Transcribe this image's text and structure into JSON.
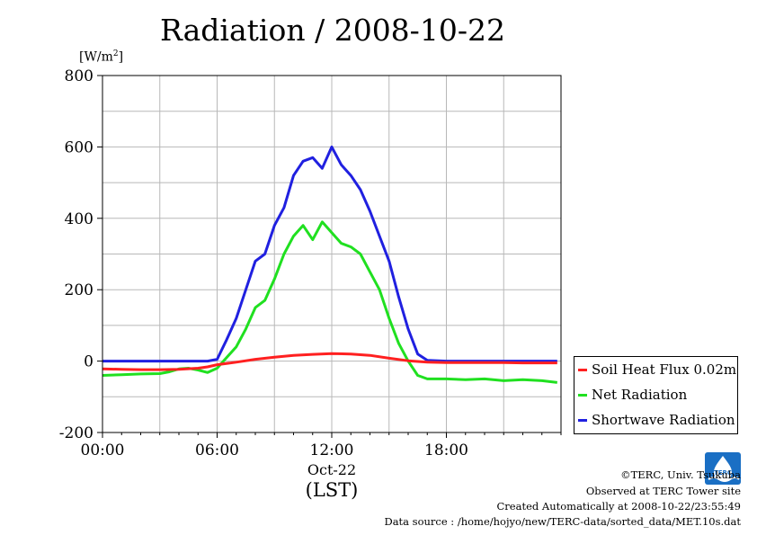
{
  "chart_data": {
    "type": "line",
    "title": "Radiation / 2008-10-22",
    "ylabel": "[W/m2]",
    "ylabel_base": "[W/m",
    "ylabel_sup": "2",
    "ylabel_end": "]",
    "xlabel_date": "Oct-22",
    "xlabel": "(LST)",
    "xlim": [
      0,
      24
    ],
    "ylim": [
      -200,
      800
    ],
    "y_ticks": [
      -200,
      0,
      200,
      400,
      600,
      800
    ],
    "y_tick_labels": [
      "-200",
      "0",
      "200",
      "400",
      "600",
      "800"
    ],
    "x_ticks": [
      0,
      6,
      12,
      18
    ],
    "x_tick_labels": [
      "00:00",
      "06:00",
      "12:00",
      "18:00"
    ],
    "grid": true,
    "legend_position": "right",
    "series": [
      {
        "name": "Soil Heat Flux 0.02m",
        "color": "#ff2020",
        "x": [
          0,
          1,
          2,
          3,
          4,
          5,
          5.5,
          6,
          7,
          8,
          9,
          10,
          11,
          12,
          13,
          14,
          15,
          16,
          17,
          18,
          19,
          20,
          21,
          22,
          23,
          23.8
        ],
        "y": [
          -22,
          -23,
          -24,
          -24,
          -23,
          -20,
          -16,
          -10,
          -3,
          5,
          11,
          16,
          19,
          21,
          20,
          16,
          8,
          1,
          -3,
          -4,
          -4,
          -4,
          -4,
          -5,
          -5,
          -5
        ]
      },
      {
        "name": "Net Radiation",
        "color": "#20e020",
        "x": [
          0,
          1,
          2,
          3,
          3.5,
          4,
          4.5,
          5,
          5.5,
          6,
          6.5,
          7,
          7.5,
          8,
          8.5,
          9,
          9.5,
          10,
          10.5,
          11,
          11.5,
          12,
          12.5,
          13,
          13.5,
          14,
          14.5,
          15,
          15.5,
          16,
          16.5,
          17,
          18,
          19,
          20,
          21,
          22,
          23,
          23.8
        ],
        "y": [
          -40,
          -38,
          -36,
          -35,
          -30,
          -22,
          -20,
          -25,
          -32,
          -20,
          10,
          40,
          90,
          150,
          170,
          230,
          300,
          350,
          380,
          340,
          390,
          360,
          330,
          320,
          300,
          250,
          200,
          120,
          50,
          0,
          -40,
          -50,
          -50,
          -52,
          -50,
          -55,
          -52,
          -55,
          -60
        ]
      },
      {
        "name": "Shortwave Radiation",
        "color": "#2020e0",
        "x": [
          0,
          1,
          2,
          3,
          4,
          5,
          5.5,
          6,
          6.5,
          7,
          7.5,
          8,
          8.5,
          9,
          9.5,
          10,
          10.5,
          11,
          11.5,
          12,
          12.5,
          13,
          13.5,
          14,
          14.5,
          15,
          15.5,
          16,
          16.5,
          17,
          18,
          19,
          20,
          21,
          22,
          23,
          23.8
        ],
        "y": [
          0,
          0,
          0,
          0,
          0,
          0,
          0,
          5,
          60,
          120,
          200,
          280,
          300,
          380,
          430,
          520,
          560,
          570,
          540,
          600,
          550,
          520,
          480,
          420,
          350,
          280,
          180,
          90,
          20,
          2,
          0,
          0,
          0,
          0,
          0,
          0,
          0
        ]
      }
    ]
  },
  "legend": {
    "items": [
      "Soil Heat Flux 0.02m",
      "Net Radiation",
      "Shortwave Radiation"
    ]
  },
  "footer": {
    "copyright": "©TERC, Univ. Tsukuba",
    "observed": "Observed at TERC Tower site",
    "created": "Created Automatically at 2008-10-22/23:55:49",
    "source": "Data source : /home/hojyo/new/TERC-data/sorted_data/MET.10s.dat"
  },
  "logo": {
    "text": "TERC",
    "color": "#1a6fc4"
  }
}
